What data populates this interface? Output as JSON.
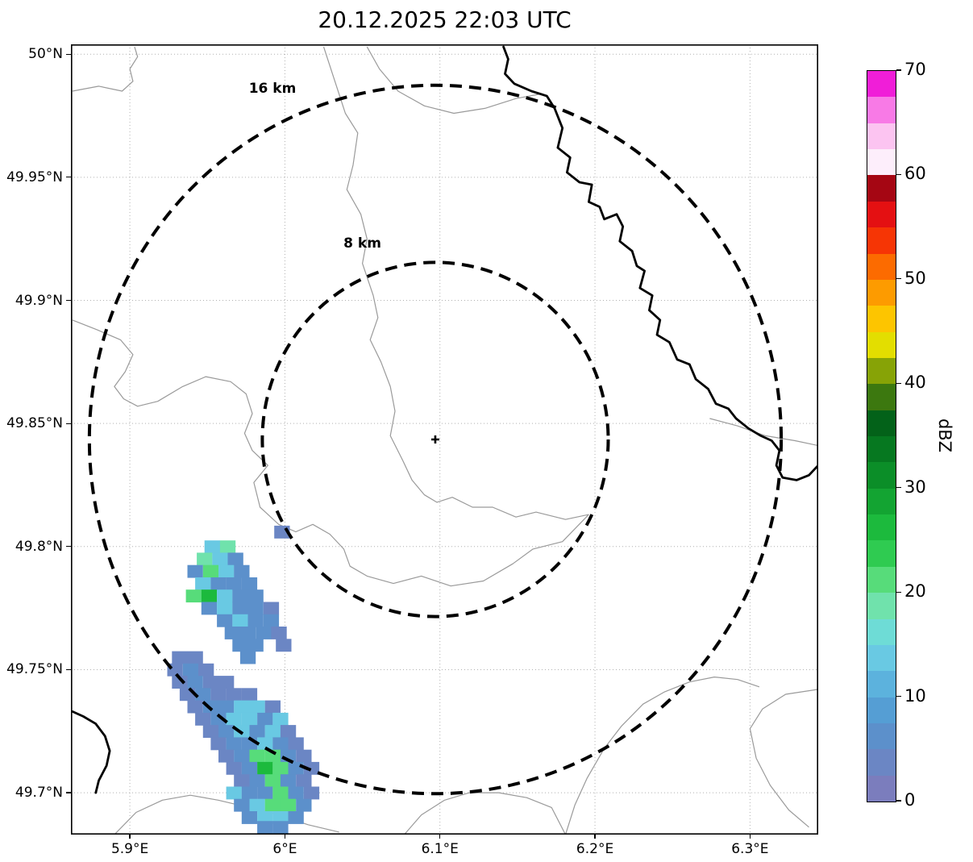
{
  "title": "20.12.2025 22:03 UTC",
  "chart_data": {
    "type": "heatmap",
    "title": "20.12.2025 22:03 UTC",
    "xlabel": "",
    "ylabel": "",
    "grid": true,
    "xlim": [
      5.862,
      6.344
    ],
    "ylim": [
      49.683,
      50.004
    ],
    "x_ticks": [
      {
        "value": 5.9,
        "label": "5.9°E"
      },
      {
        "value": 6.0,
        "label": "6°E"
      },
      {
        "value": 6.1,
        "label": "6.1°E"
      },
      {
        "value": 6.2,
        "label": "6.2°E"
      },
      {
        "value": 6.3,
        "label": "6.3°E"
      }
    ],
    "y_ticks": [
      {
        "value": 50.0,
        "label": "50°N"
      },
      {
        "value": 49.95,
        "label": "49.95°N"
      },
      {
        "value": 49.9,
        "label": "49.9°N"
      },
      {
        "value": 49.85,
        "label": "49.85°N"
      },
      {
        "value": 49.8,
        "label": "49.8°N"
      },
      {
        "value": 49.75,
        "label": "49.75°N"
      },
      {
        "value": 49.7,
        "label": "49.7°N"
      }
    ],
    "radar_center": {
      "lon": 6.097,
      "lat": 49.8435
    },
    "range_rings": [
      {
        "radius_km": 16,
        "label": "16 km",
        "label_lon": 5.992,
        "label_lat": 49.986
      },
      {
        "radius_km": 8,
        "label": "8 km",
        "label_lon": 6.05,
        "label_lat": 49.923
      }
    ],
    "colorbar": {
      "label": "dBZ",
      "min": 0,
      "max": 70,
      "ticks": [
        0,
        10,
        20,
        30,
        40,
        50,
        60,
        70
      ],
      "colors": [
        "#7b7dbd",
        "#6b86c4",
        "#5c90cb",
        "#559ed4",
        "#5cb2dd",
        "#69c9e3",
        "#6edcd6",
        "#70e2ac",
        "#57dc7a",
        "#2fcb51",
        "#1cba3d",
        "#13a432",
        "#0b8e28",
        "#067820",
        "#036219",
        "#3c780f",
        "#87a306",
        "#e3de00",
        "#fdc500",
        "#fd9b00",
        "#fc6b00",
        "#f63505",
        "#e41012",
        "#a50613",
        "#fdeefb",
        "#fcc4f1",
        "#f87ae6",
        "#f01ed8"
      ]
    },
    "cell_size": {
      "dlon": 0.0097,
      "dlat": 0.005
    },
    "cells": [
      [
        5.998,
        49.806,
        4
      ],
      [
        5.953,
        49.8,
        13
      ],
      [
        5.963,
        49.8,
        18
      ],
      [
        5.948,
        49.795,
        18
      ],
      [
        5.958,
        49.795,
        13
      ],
      [
        5.968,
        49.795,
        6
      ],
      [
        5.942,
        49.79,
        6
      ],
      [
        5.952,
        49.79,
        22
      ],
      [
        5.962,
        49.79,
        13
      ],
      [
        5.972,
        49.79,
        6
      ],
      [
        5.947,
        49.785,
        13
      ],
      [
        5.957,
        49.785,
        6
      ],
      [
        5.967,
        49.785,
        6
      ],
      [
        5.977,
        49.785,
        6
      ],
      [
        5.941,
        49.78,
        22
      ],
      [
        5.951,
        49.78,
        26
      ],
      [
        5.961,
        49.78,
        13
      ],
      [
        5.971,
        49.78,
        6
      ],
      [
        5.981,
        49.78,
        6
      ],
      [
        5.951,
        49.775,
        6
      ],
      [
        5.961,
        49.775,
        13
      ],
      [
        5.971,
        49.775,
        6
      ],
      [
        5.981,
        49.775,
        6
      ],
      [
        5.991,
        49.775,
        4
      ],
      [
        5.961,
        49.77,
        6
      ],
      [
        5.971,
        49.77,
        13
      ],
      [
        5.981,
        49.77,
        6
      ],
      [
        5.991,
        49.77,
        6
      ],
      [
        5.966,
        49.765,
        6
      ],
      [
        5.976,
        49.765,
        6
      ],
      [
        5.986,
        49.765,
        6
      ],
      [
        5.996,
        49.765,
        4
      ],
      [
        5.971,
        49.76,
        6
      ],
      [
        5.981,
        49.76,
        6
      ],
      [
        5.999,
        49.76,
        4
      ],
      [
        5.976,
        49.755,
        6
      ],
      [
        5.932,
        49.755,
        4
      ],
      [
        5.942,
        49.755,
        4
      ],
      [
        5.929,
        49.75,
        4
      ],
      [
        5.939,
        49.75,
        6
      ],
      [
        5.949,
        49.75,
        4
      ],
      [
        5.932,
        49.745,
        4
      ],
      [
        5.942,
        49.745,
        6
      ],
      [
        5.952,
        49.745,
        4
      ],
      [
        5.962,
        49.745,
        4
      ],
      [
        5.937,
        49.74,
        4
      ],
      [
        5.947,
        49.74,
        6
      ],
      [
        5.957,
        49.74,
        4
      ],
      [
        5.967,
        49.74,
        4
      ],
      [
        5.977,
        49.74,
        4
      ],
      [
        5.942,
        49.735,
        4
      ],
      [
        5.952,
        49.735,
        6
      ],
      [
        5.962,
        49.735,
        6
      ],
      [
        5.972,
        49.735,
        13
      ],
      [
        5.982,
        49.735,
        13
      ],
      [
        5.992,
        49.735,
        4
      ],
      [
        5.947,
        49.73,
        4
      ],
      [
        5.957,
        49.73,
        6
      ],
      [
        5.967,
        49.73,
        13
      ],
      [
        5.977,
        49.73,
        13
      ],
      [
        5.987,
        49.73,
        6
      ],
      [
        5.997,
        49.73,
        13
      ],
      [
        5.952,
        49.725,
        4
      ],
      [
        5.962,
        49.725,
        6
      ],
      [
        5.972,
        49.725,
        13
      ],
      [
        5.982,
        49.725,
        6
      ],
      [
        5.992,
        49.725,
        13
      ],
      [
        6.002,
        49.725,
        4
      ],
      [
        5.957,
        49.72,
        4
      ],
      [
        5.967,
        49.72,
        6
      ],
      [
        5.977,
        49.72,
        6
      ],
      [
        5.987,
        49.72,
        13
      ],
      [
        5.997,
        49.72,
        6
      ],
      [
        6.007,
        49.72,
        4
      ],
      [
        5.962,
        49.715,
        4
      ],
      [
        5.972,
        49.715,
        6
      ],
      [
        5.982,
        49.715,
        22
      ],
      [
        5.992,
        49.715,
        22
      ],
      [
        6.002,
        49.715,
        6
      ],
      [
        6.012,
        49.715,
        4
      ],
      [
        5.967,
        49.71,
        4
      ],
      [
        5.977,
        49.71,
        6
      ],
      [
        5.987,
        49.71,
        26
      ],
      [
        5.997,
        49.71,
        22
      ],
      [
        6.007,
        49.71,
        6
      ],
      [
        6.017,
        49.71,
        4
      ],
      [
        5.972,
        49.705,
        4
      ],
      [
        5.982,
        49.705,
        6
      ],
      [
        5.992,
        49.705,
        22
      ],
      [
        6.002,
        49.705,
        6
      ],
      [
        6.012,
        49.705,
        4
      ],
      [
        5.967,
        49.7,
        13
      ],
      [
        5.977,
        49.7,
        6
      ],
      [
        5.987,
        49.7,
        6
      ],
      [
        5.997,
        49.7,
        22
      ],
      [
        6.007,
        49.7,
        6
      ],
      [
        6.017,
        49.7,
        4
      ],
      [
        5.972,
        49.695,
        6
      ],
      [
        5.982,
        49.695,
        13
      ],
      [
        5.992,
        49.695,
        22
      ],
      [
        6.002,
        49.695,
        22
      ],
      [
        6.012,
        49.695,
        6
      ],
      [
        5.977,
        49.69,
        6
      ],
      [
        5.987,
        49.69,
        13
      ],
      [
        5.997,
        49.69,
        13
      ],
      [
        6.007,
        49.69,
        6
      ],
      [
        5.987,
        49.686,
        6
      ],
      [
        5.997,
        49.686,
        6
      ]
    ],
    "map_lines": [
      [
        [
          6.025,
          50.003
        ],
        [
          6.039,
          49.976
        ],
        [
          6.047,
          49.968
        ],
        [
          6.044,
          49.955
        ],
        [
          6.04,
          49.945
        ],
        [
          6.049,
          49.935
        ],
        [
          6.053,
          49.925
        ],
        [
          6.05,
          49.915
        ],
        [
          6.057,
          49.902
        ],
        [
          6.06,
          49.893
        ],
        [
          6.055,
          49.884
        ],
        [
          6.062,
          49.875
        ],
        [
          6.068,
          49.865
        ],
        [
          6.071,
          49.855
        ],
        [
          6.068,
          49.845
        ],
        [
          6.076,
          49.835
        ],
        [
          6.082,
          49.827
        ],
        [
          6.09,
          49.821
        ],
        [
          6.098,
          49.818
        ],
        [
          6.108,
          49.82
        ],
        [
          6.121,
          49.816
        ],
        [
          6.134,
          49.816
        ],
        [
          6.149,
          49.812
        ],
        [
          6.162,
          49.814
        ],
        [
          6.181,
          49.811
        ],
        [
          6.196,
          49.813
        ]
      ],
      [
        [
          6.053,
          50.003
        ],
        [
          6.061,
          49.994
        ],
        [
          6.073,
          49.985
        ],
        [
          6.09,
          49.979
        ],
        [
          6.109,
          49.976
        ],
        [
          6.129,
          49.978
        ],
        [
          6.149,
          49.982
        ],
        [
          6.166,
          49.984
        ]
      ],
      [
        [
          5.863,
          49.892
        ],
        [
          5.879,
          49.888
        ],
        [
          5.894,
          49.884
        ],
        [
          5.902,
          49.878
        ],
        [
          5.897,
          49.871
        ],
        [
          5.89,
          49.865
        ],
        [
          5.896,
          49.86
        ],
        [
          5.905,
          49.857
        ],
        [
          5.918,
          49.859
        ],
        [
          5.934,
          49.865
        ],
        [
          5.949,
          49.869
        ],
        [
          5.965,
          49.867
        ],
        [
          5.975,
          49.862
        ],
        [
          5.979,
          49.854
        ],
        [
          5.974,
          49.846
        ],
        [
          5.979,
          49.839
        ],
        [
          5.989,
          49.833
        ],
        [
          5.98,
          49.826
        ],
        [
          5.984,
          49.816
        ],
        [
          5.996,
          49.809
        ],
        [
          6.007,
          49.806
        ],
        [
          6.018,
          49.809
        ],
        [
          6.029,
          49.805
        ],
        [
          6.038,
          49.799
        ],
        [
          6.042,
          49.792
        ],
        [
          6.053,
          49.788
        ],
        [
          6.07,
          49.785
        ],
        [
          6.088,
          49.788
        ],
        [
          6.107,
          49.784
        ],
        [
          6.128,
          49.786
        ],
        [
          6.147,
          49.793
        ],
        [
          6.16,
          49.799
        ],
        [
          6.179,
          49.802
        ],
        [
          6.196,
          49.813
        ]
      ],
      [
        [
          6.274,
          49.852
        ],
        [
          6.292,
          49.849
        ],
        [
          6.31,
          49.845
        ],
        [
          6.329,
          49.843
        ],
        [
          6.344,
          49.841
        ]
      ],
      [
        [
          6.344,
          49.742
        ],
        [
          6.323,
          49.74
        ],
        [
          6.308,
          49.734
        ],
        [
          6.3,
          49.726
        ],
        [
          6.304,
          49.714
        ],
        [
          6.313,
          49.703
        ],
        [
          6.325,
          49.693
        ],
        [
          6.338,
          49.686
        ]
      ],
      [
        [
          6.181,
          49.683
        ],
        [
          6.187,
          49.695
        ],
        [
          6.195,
          49.706
        ],
        [
          6.206,
          49.718
        ],
        [
          6.217,
          49.727
        ],
        [
          6.231,
          49.736
        ],
        [
          6.245,
          49.741
        ],
        [
          6.261,
          49.745
        ],
        [
          6.277,
          49.747
        ],
        [
          6.292,
          49.746
        ],
        [
          6.306,
          49.743
        ]
      ],
      [
        [
          5.89,
          49.683
        ],
        [
          5.904,
          49.692
        ],
        [
          5.921,
          49.697
        ],
        [
          5.939,
          49.699
        ],
        [
          5.957,
          49.697
        ],
        [
          5.977,
          49.694
        ],
        [
          5.996,
          49.691
        ],
        [
          6.015,
          49.687
        ],
        [
          6.035,
          49.684
        ]
      ],
      [
        [
          6.077,
          49.683
        ],
        [
          6.088,
          49.691
        ],
        [
          6.103,
          49.697
        ],
        [
          6.119,
          49.7
        ],
        [
          6.138,
          49.7
        ],
        [
          6.156,
          49.698
        ],
        [
          6.172,
          49.694
        ],
        [
          6.181,
          49.683
        ]
      ],
      [
        [
          5.863,
          49.985
        ],
        [
          5.88,
          49.987
        ],
        [
          5.895,
          49.985
        ],
        [
          5.902,
          49.989
        ],
        [
          5.9,
          49.994
        ],
        [
          5.905,
          49.999
        ],
        [
          5.903,
          50.003
        ]
      ]
    ],
    "border_lines": [
      [
        [
          6.141,
          50.003
        ],
        [
          6.144,
          49.998
        ],
        [
          6.142,
          49.992
        ],
        [
          6.148,
          49.988
        ],
        [
          6.159,
          49.985
        ],
        [
          6.169,
          49.983
        ],
        [
          6.174,
          49.978
        ],
        [
          6.179,
          49.97
        ],
        [
          6.176,
          49.962
        ],
        [
          6.184,
          49.958
        ],
        [
          6.182,
          49.952
        ],
        [
          6.19,
          49.948
        ],
        [
          6.198,
          49.947
        ],
        [
          6.196,
          49.94
        ],
        [
          6.203,
          49.938
        ],
        [
          6.206,
          49.933
        ],
        [
          6.214,
          49.935
        ],
        [
          6.218,
          49.93
        ],
        [
          6.216,
          49.924
        ],
        [
          6.224,
          49.92
        ],
        [
          6.227,
          49.914
        ],
        [
          6.232,
          49.912
        ],
        [
          6.229,
          49.905
        ],
        [
          6.237,
          49.902
        ],
        [
          6.235,
          49.896
        ],
        [
          6.242,
          49.892
        ],
        [
          6.24,
          49.886
        ],
        [
          6.248,
          49.883
        ],
        [
          6.253,
          49.876
        ],
        [
          6.261,
          49.874
        ],
        [
          6.265,
          49.868
        ],
        [
          6.273,
          49.864
        ],
        [
          6.278,
          49.858
        ],
        [
          6.286,
          49.856
        ],
        [
          6.291,
          49.852
        ],
        [
          6.299,
          49.848
        ],
        [
          6.307,
          49.845
        ],
        [
          6.314,
          49.843
        ],
        [
          6.319,
          49.839
        ],
        [
          6.317,
          49.833
        ],
        [
          6.321,
          49.828
        ],
        [
          6.33,
          49.827
        ],
        [
          6.338,
          49.829
        ],
        [
          6.344,
          49.833
        ]
      ],
      [
        [
          5.863,
          49.733
        ],
        [
          5.87,
          49.731
        ],
        [
          5.878,
          49.728
        ],
        [
          5.884,
          49.723
        ],
        [
          5.887,
          49.717
        ],
        [
          5.885,
          49.711
        ],
        [
          5.88,
          49.705
        ],
        [
          5.878,
          49.7
        ]
      ]
    ]
  }
}
